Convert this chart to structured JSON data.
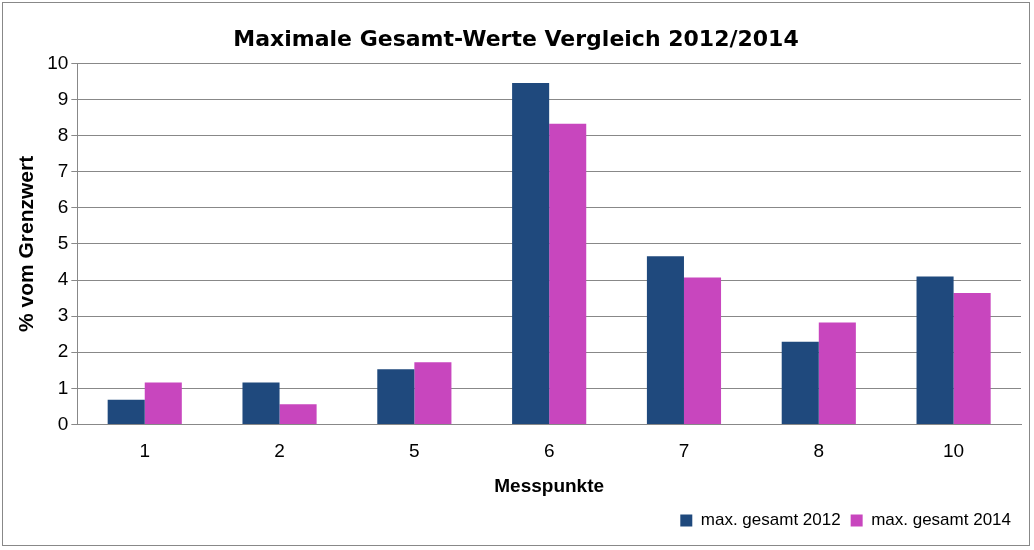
{
  "chart_data": {
    "type": "bar",
    "title": "Maximale Gesamt-Werte Vergleich 2012/2014",
    "xlabel": "Messpunkte",
    "ylabel": "% vom Grenzwert",
    "categories": [
      "1",
      "2",
      "5",
      "6",
      "7",
      "8",
      "10"
    ],
    "series": [
      {
        "name": "max. gesamt 2012",
        "color": "#1f497d",
        "values": [
          0.68,
          1.16,
          1.53,
          9.46,
          4.66,
          2.29,
          4.1
        ]
      },
      {
        "name": "max. gesamt 2014",
        "color": "#c846be",
        "values": [
          1.16,
          0.56,
          1.72,
          8.33,
          4.07,
          2.82,
          3.64
        ]
      }
    ],
    "ylim": [
      0,
      10
    ],
    "yticks": [
      0,
      1,
      2,
      3,
      4,
      5,
      6,
      7,
      8,
      9,
      10
    ],
    "grid": "y",
    "legend": "bottom right"
  }
}
